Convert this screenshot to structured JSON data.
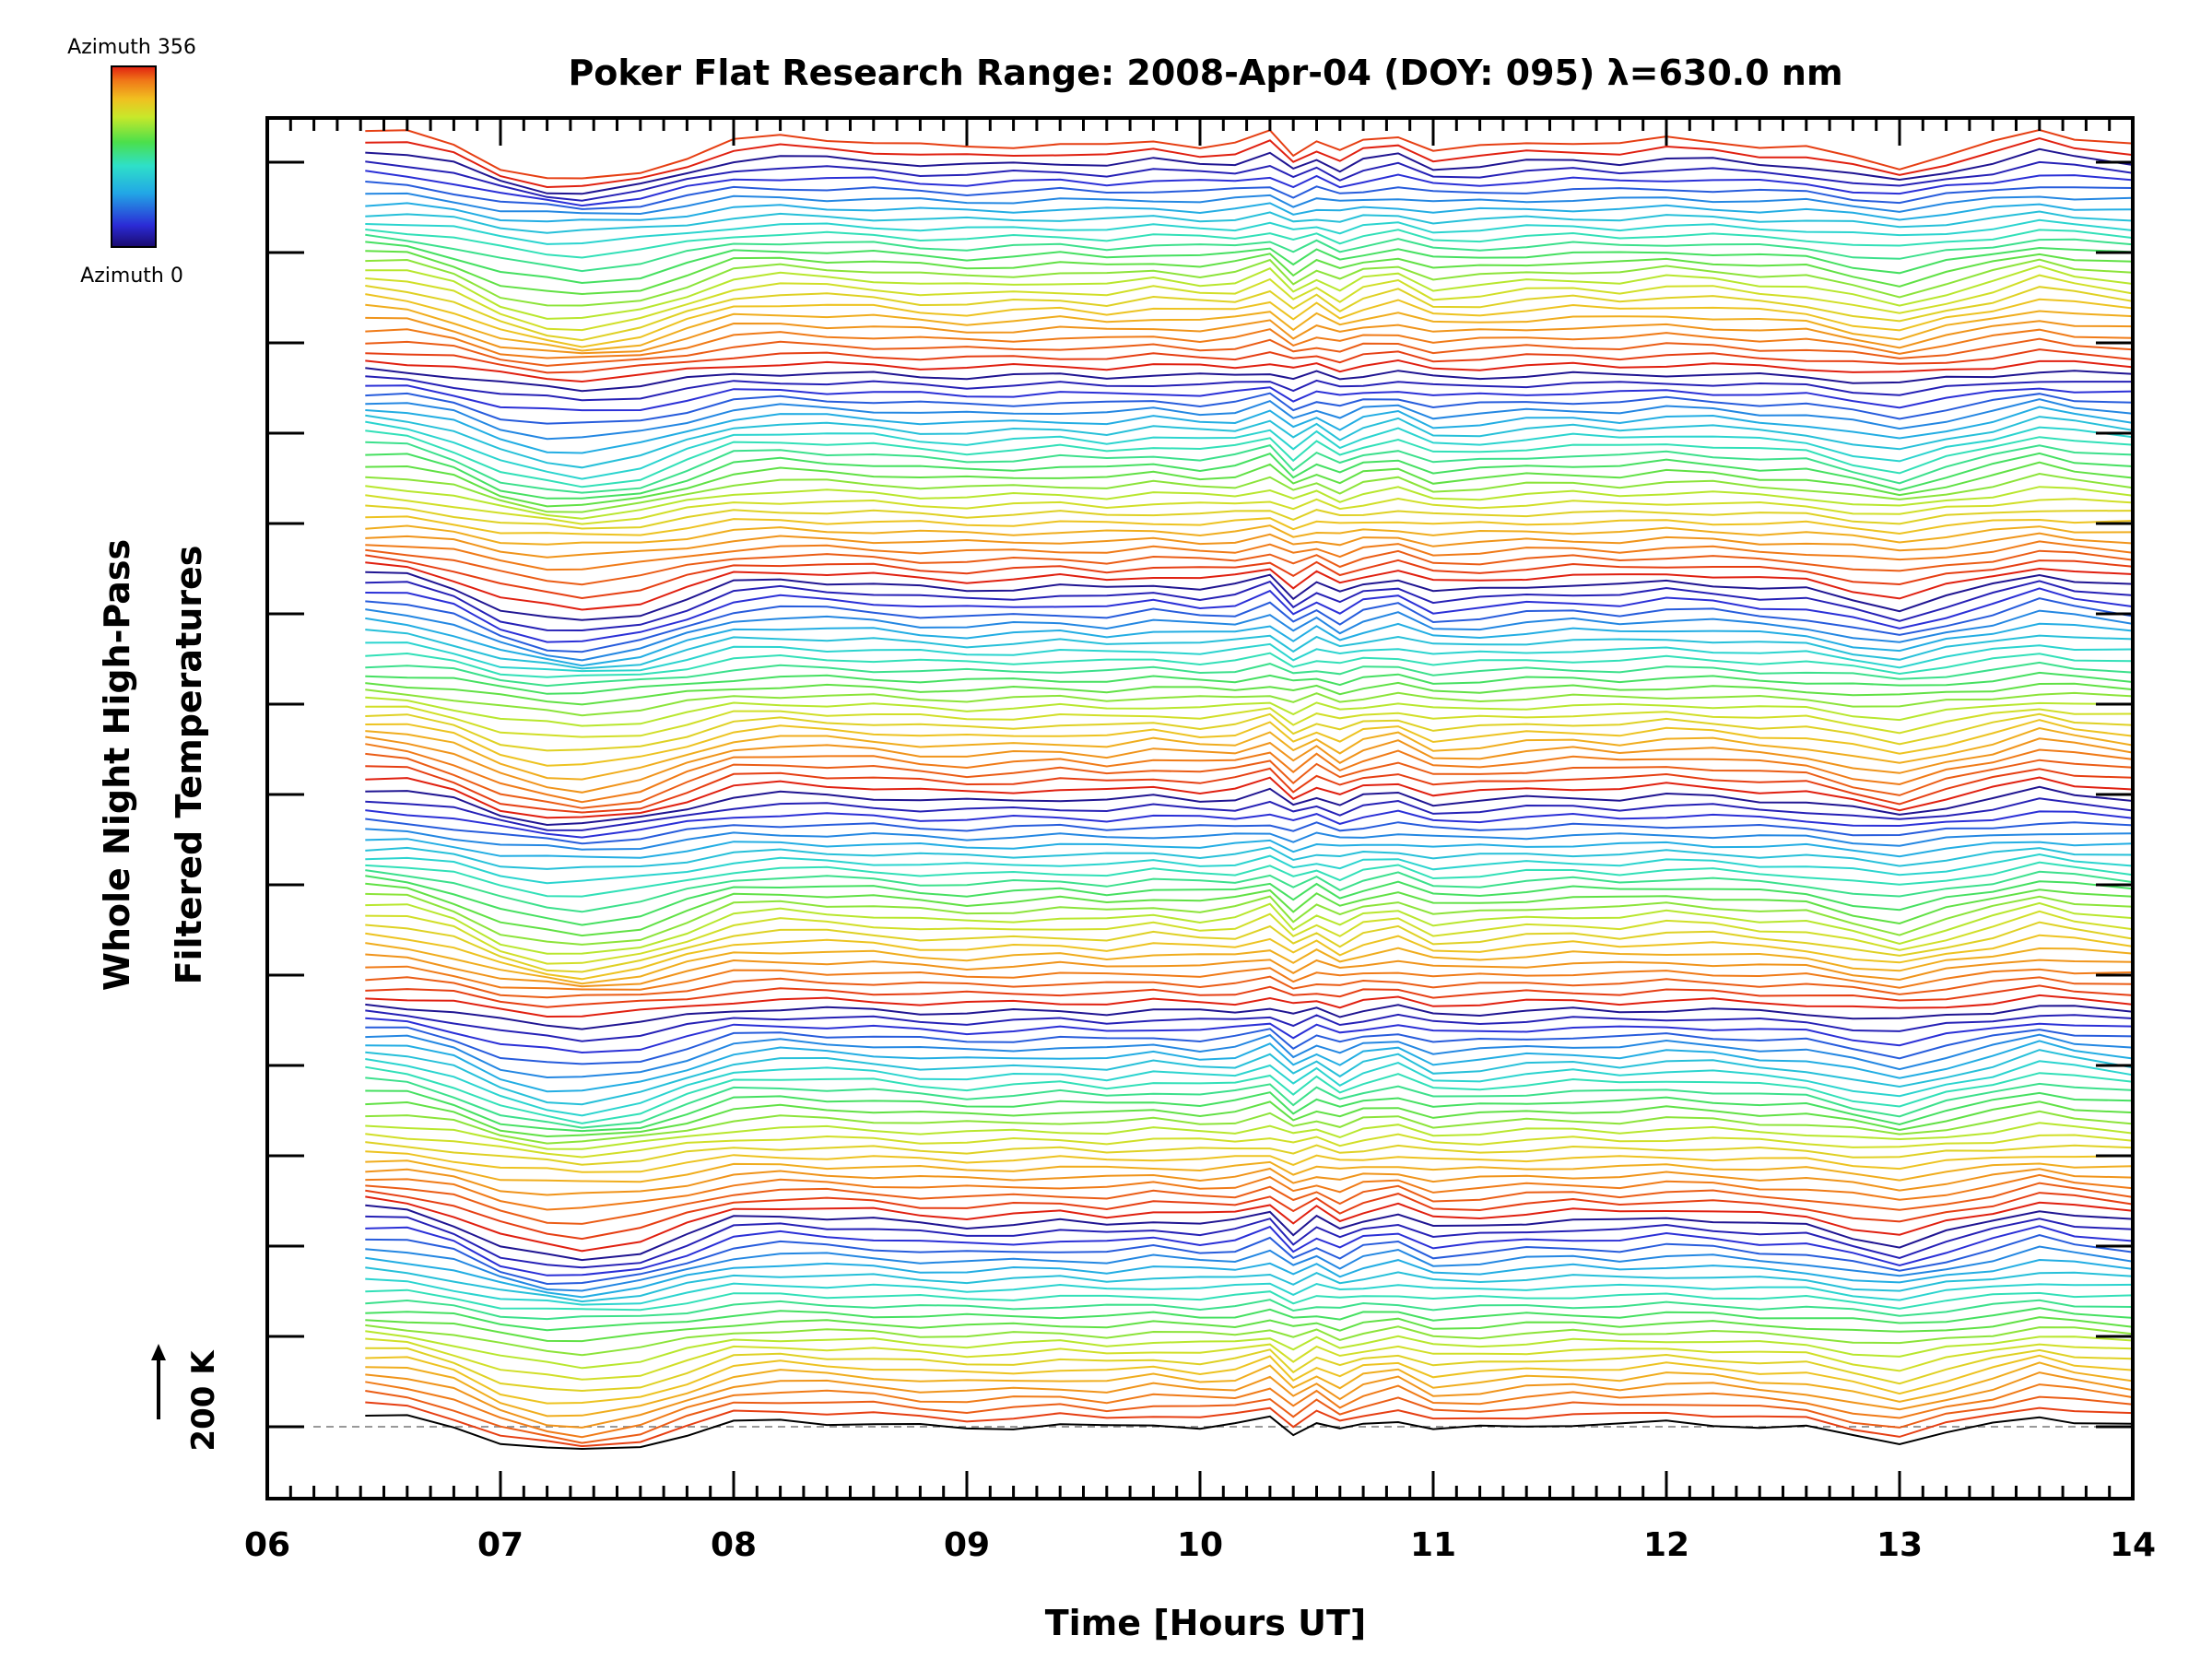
{
  "chart_data": {
    "type": "line",
    "title": "Poker Flat Research Range: 2008-Apr-04 (DOY: 095) λ=630.0 nm",
    "xlabel": "Time [Hours UT]",
    "ylabel_lines": [
      "Whole Night High-Pass",
      "Filtered Temperatures"
    ],
    "xlim": [
      6,
      14
    ],
    "x_tick_labels": [
      "06",
      "07",
      "08",
      "09",
      "10",
      "11",
      "12",
      "13",
      "14"
    ],
    "y_ticks_count": 15,
    "grid": false,
    "colorbar": {
      "top_label": "Azimuth 356",
      "bottom_label": "Azimuth 0",
      "colormap": [
        "#1a0a6e",
        "#2b2bd6",
        "#22a8e6",
        "#2ee0c8",
        "#4be04b",
        "#c8e82a",
        "#f0c020",
        "#f07818",
        "#e02010"
      ],
      "position": "top-left"
    },
    "scale_marker": {
      "label": "200 K"
    },
    "baseline_style": "dashed",
    "profile": {
      "x": [
        6.42,
        6.6,
        6.8,
        7.0,
        7.2,
        7.35,
        7.6,
        7.8,
        8.0,
        8.2,
        8.4,
        8.6,
        8.8,
        9.0,
        9.2,
        9.4,
        9.6,
        9.8,
        10.0,
        10.15,
        10.3,
        10.4,
        10.5,
        10.6,
        10.7,
        10.85,
        11.0,
        11.2,
        11.4,
        11.6,
        11.8,
        12.0,
        12.2,
        12.4,
        12.6,
        12.8,
        13.0,
        13.2,
        13.4,
        13.6,
        13.75,
        14.0
      ],
      "y_k": [
        15,
        12,
        0,
        -20,
        -30,
        -33,
        -25,
        -10,
        5,
        8,
        6,
        4,
        0,
        -2,
        0,
        2,
        -1,
        4,
        0,
        2,
        12,
        -8,
        6,
        -6,
        4,
        10,
        -4,
        -2,
        2,
        4,
        2,
        6,
        4,
        0,
        -2,
        -12,
        -20,
        -8,
        2,
        14,
        8,
        2
      ]
    },
    "series": [
      {
        "name": "Azimuth 0",
        "values_description": "stacked traces from Azimuth 0 (bottom) to Azimuth 356 (top)"
      }
    ]
  }
}
